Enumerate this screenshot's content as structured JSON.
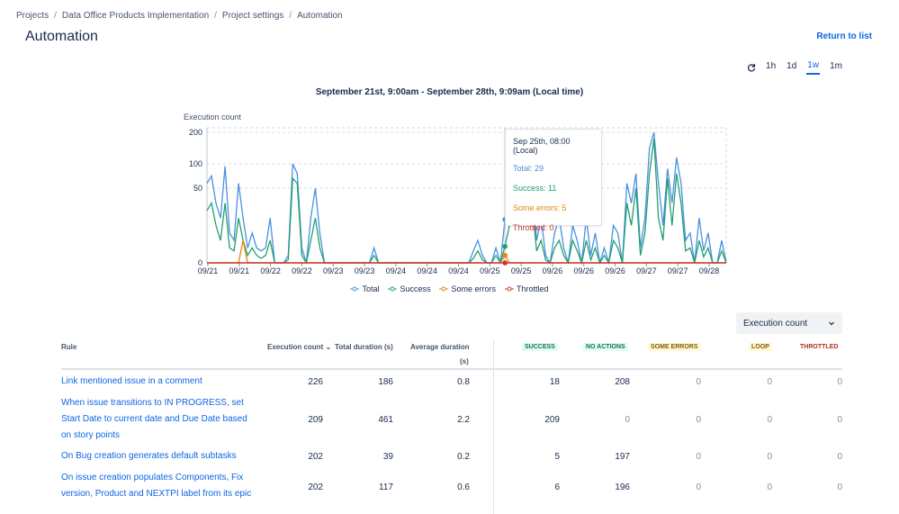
{
  "breadcrumb": [
    "Projects",
    "Data Office Products Implementation",
    "Project settings",
    "Automation"
  ],
  "page_title": "Automation",
  "return_link": "Return to list",
  "time_ranges": [
    "1h",
    "1d",
    "1w",
    "1m"
  ],
  "active_range": "1w",
  "chart_data": {
    "type": "line",
    "title": "September 21st, 9:00am - September 28th, 9:09am (Local time)",
    "ylabel": "Execution count",
    "y_ticks": [
      "0",
      "50",
      "100",
      "200"
    ],
    "x_ticks": [
      "09/21",
      "09/21",
      "09/22",
      "09/22",
      "09/23",
      "09/23",
      "09/24",
      "09/24",
      "09/24",
      "09/25",
      "09/25",
      "09/26",
      "09/26",
      "09/26",
      "09/27",
      "09/27",
      "09/28"
    ],
    "series": [
      {
        "name": "Total",
        "color": "#4a90e2",
        "values": [
          60,
          75,
          40,
          30,
          95,
          20,
          15,
          60,
          30,
          10,
          20,
          10,
          8,
          10,
          30,
          0,
          0,
          0,
          5,
          100,
          80,
          10,
          0,
          30,
          50,
          20,
          0,
          0,
          0,
          0,
          0,
          0,
          0,
          0,
          0,
          0,
          0,
          10,
          0,
          0,
          0,
          0,
          0,
          0,
          0,
          0,
          0,
          0,
          0,
          0,
          0,
          0,
          0,
          0,
          0,
          0,
          0,
          0,
          0,
          8,
          15,
          5,
          0,
          0,
          10,
          0,
          29,
          40,
          60,
          70,
          80,
          40,
          60,
          15,
          30,
          5,
          0,
          20,
          30,
          10,
          0,
          25,
          15,
          0,
          30,
          5,
          20,
          0,
          10,
          0,
          25,
          20,
          0,
          60,
          40,
          80,
          10,
          30,
          150,
          200,
          60,
          25,
          90,
          40,
          120,
          60,
          15,
          20,
          0,
          30,
          8,
          20,
          0,
          0,
          15,
          0
        ]
      },
      {
        "name": "Success",
        "color": "#22a06b",
        "values": [
          35,
          40,
          25,
          15,
          40,
          10,
          8,
          30,
          15,
          5,
          10,
          5,
          3,
          5,
          15,
          0,
          0,
          0,
          2,
          70,
          60,
          5,
          0,
          15,
          30,
          10,
          0,
          0,
          0,
          0,
          0,
          0,
          0,
          0,
          0,
          0,
          0,
          5,
          0,
          0,
          0,
          0,
          0,
          0,
          0,
          0,
          0,
          0,
          0,
          0,
          0,
          0,
          0,
          0,
          0,
          0,
          0,
          0,
          0,
          3,
          8,
          2,
          0,
          0,
          5,
          0,
          11,
          25,
          40,
          50,
          60,
          25,
          40,
          8,
          15,
          2,
          0,
          10,
          15,
          5,
          0,
          15,
          8,
          0,
          15,
          2,
          10,
          0,
          5,
          0,
          15,
          10,
          0,
          40,
          25,
          50,
          5,
          20,
          80,
          180,
          30,
          15,
          70,
          25,
          80,
          40,
          8,
          10,
          0,
          15,
          4,
          10,
          0,
          0,
          8,
          0
        ]
      },
      {
        "name": "Some errors",
        "color": "#e2860b",
        "values": [
          0,
          0,
          0,
          0,
          0,
          0,
          0,
          0,
          15,
          0,
          0,
          0,
          0,
          0,
          0,
          0,
          0,
          0,
          0,
          0,
          0,
          0,
          0,
          0,
          0,
          0,
          0,
          0,
          0,
          0,
          0,
          0,
          0,
          0,
          0,
          0,
          0,
          0,
          0,
          0,
          0,
          0,
          0,
          0,
          0,
          0,
          0,
          0,
          0,
          0,
          0,
          0,
          0,
          0,
          0,
          0,
          0,
          0,
          0,
          0,
          0,
          0,
          0,
          0,
          0,
          0,
          5,
          0,
          0,
          0,
          0,
          0,
          0,
          0,
          0,
          0,
          0,
          0,
          0,
          0,
          0,
          0,
          0,
          0,
          0,
          0,
          0,
          0,
          0,
          0,
          0,
          0,
          0,
          0,
          0,
          0,
          0,
          0,
          0,
          0,
          0,
          0,
          0,
          0,
          0,
          0,
          0,
          0,
          0,
          0,
          0,
          0,
          0,
          0,
          0,
          0
        ]
      },
      {
        "name": "Throttled",
        "color": "#c9372c",
        "values": [
          0,
          0,
          0,
          0,
          0,
          0,
          0,
          0,
          0,
          0,
          0,
          0,
          0,
          0,
          0,
          0,
          0,
          0,
          0,
          0,
          0,
          0,
          0,
          0,
          0,
          0,
          0,
          0,
          0,
          0,
          0,
          0,
          0,
          0,
          0,
          0,
          0,
          0,
          0,
          0,
          0,
          0,
          0,
          0,
          0,
          0,
          0,
          0,
          0,
          0,
          0,
          0,
          0,
          0,
          0,
          0,
          0,
          0,
          0,
          0,
          0,
          0,
          0,
          0,
          0,
          0,
          0,
          0,
          0,
          0,
          0,
          0,
          0,
          0,
          0,
          0,
          0,
          0,
          0,
          0,
          0,
          0,
          0,
          0,
          0,
          0,
          0,
          0,
          0,
          0,
          0,
          0,
          0,
          0,
          0,
          0,
          0,
          0,
          0,
          0,
          0,
          0,
          0,
          0,
          0,
          0,
          0,
          0,
          0,
          0,
          0,
          0,
          0,
          0,
          0,
          0
        ]
      }
    ],
    "tooltip": {
      "header": "Sep 25th, 08:00 (Local)",
      "total": "Total: 29",
      "success": "Success: 11",
      "errors": "Some errors: 5",
      "throttled": "Throttled: 0"
    }
  },
  "sort_select": "Execution count",
  "table": {
    "headers": {
      "rule": "Rule",
      "exec_count": "Execution count",
      "total_duration": "Total duration (s)",
      "avg_duration_1": "Average duration",
      "avg_duration_2": "(s)",
      "success": "SUCCESS",
      "no_actions": "NO ACTIONS",
      "some_errors": "SOME ERRORS",
      "loop": "LOOP",
      "throttled": "THROTTLED"
    },
    "rows": [
      {
        "rule": "Link mentioned issue in a comment",
        "exec": "226",
        "total": "186",
        "avg": "0.8",
        "success": "18",
        "no_actions": "208",
        "errors": "0",
        "loop": "0",
        "throttled": "0"
      },
      {
        "rule": "When issue transitions to IN PROGRESS, set Start Date to current date and Due Date based on story points",
        "exec": "209",
        "total": "461",
        "avg": "2.2",
        "success": "209",
        "no_actions": "0",
        "errors": "0",
        "loop": "0",
        "throttled": "0"
      },
      {
        "rule": "On Bug creation generates default subtasks",
        "exec": "202",
        "total": "39",
        "avg": "0.2",
        "success": "5",
        "no_actions": "197",
        "errors": "0",
        "loop": "0",
        "throttled": "0"
      },
      {
        "rule": "On issue creation populates Components, Fix version, Product and NEXTPI label from its epic",
        "exec": "202",
        "total": "117",
        "avg": "0.6",
        "success": "6",
        "no_actions": "196",
        "errors": "0",
        "loop": "0",
        "throttled": "0"
      }
    ]
  }
}
